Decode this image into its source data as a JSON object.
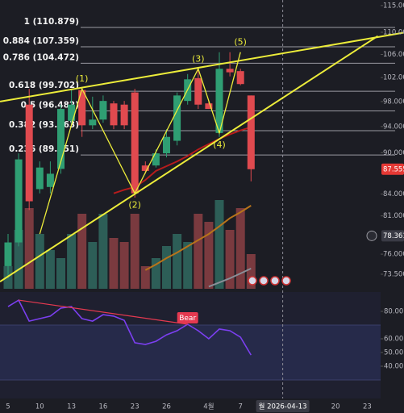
{
  "chart_data": {
    "type": "candlestick",
    "log_scale": true,
    "ylim": [
      71.74,
      116.07
    ],
    "yticks": [
      {
        "value": 115,
        "label": "115.000"
      },
      {
        "value": 110,
        "label": "110.000"
      },
      {
        "value": 106,
        "label": "106.000"
      },
      {
        "value": 102,
        "label": "102.000"
      },
      {
        "value": 98,
        "label": "98.000"
      },
      {
        "value": 94,
        "label": "94.000"
      },
      {
        "value": 90,
        "label": "90.000"
      },
      {
        "value": 84,
        "label": "84.000"
      },
      {
        "value": 81,
        "label": "81.000"
      },
      {
        "value": 76,
        "label": "76.000"
      },
      {
        "value": 73.5,
        "label": "73.500"
      }
    ],
    "categories": [
      "5",
      null,
      null,
      "10",
      null,
      null,
      "13",
      null,
      null,
      "16",
      null,
      null,
      "23",
      null,
      null,
      "26",
      null,
      null,
      null,
      "4월",
      null,
      null,
      "7",
      null,
      null,
      null,
      "월 2026-04-13",
      null,
      null,
      null,
      null,
      "20",
      null,
      null,
      "23"
    ],
    "marker_slot": 26,
    "up_color": "#2f9e73",
    "down_color": "#e04a4f",
    "candles": {
      "open": [
        74.5,
        77.5,
        97.5,
        84.7,
        85.0,
        87.6,
        94.9,
        99.9,
        94.2,
        95.1,
        97.7,
        97.5,
        99.5,
        88.1,
        88.1,
        89.9,
        91.8,
        98.1,
        101.9,
        97.7,
        93.0,
        103.5,
        103.1,
        99.0
      ],
      "high": [
        78.6,
        89.9,
        100.1,
        88.7,
        88.7,
        97.5,
        100.1,
        100.4,
        98.8,
        99.0,
        98.1,
        98.1,
        100.1,
        88.7,
        90.5,
        93.6,
        99.5,
        102.6,
        103.5,
        98.1,
        106.4,
        106.4,
        103.5,
        99.0
      ],
      "low": [
        73.0,
        77.0,
        81.8,
        84.1,
        84.1,
        86.9,
        94.2,
        92.4,
        93.6,
        94.6,
        93.6,
        93.6,
        83.5,
        86.9,
        87.8,
        89.3,
        91.1,
        97.5,
        96.8,
        96.8,
        92.4,
        102.2,
        100.7,
        85.8
      ],
      "close": [
        77.5,
        89.0,
        83.0,
        87.8,
        86.9,
        96.8,
        97.5,
        94.2,
        95.1,
        98.1,
        94.2,
        94.2,
        84.1,
        87.3,
        89.9,
        92.4,
        99.0,
        101.7,
        97.5,
        96.8,
        103.5,
        102.9,
        100.9,
        87.555
      ]
    },
    "volume": {
      "up_color": "#2d5e57",
      "down_color": "#7a3a3f",
      "values": [
        28,
        73,
        100,
        68,
        48,
        38,
        68,
        93,
        58,
        93,
        63,
        58,
        93,
        28,
        38,
        53,
        68,
        58,
        93,
        83,
        110,
        73,
        100,
        43
      ]
    },
    "moving_averages": [
      {
        "color": "#b71c1c",
        "values": [
          null,
          null,
          null,
          null,
          null,
          null,
          null,
          null,
          null,
          null,
          84.1,
          84.6,
          85.0,
          86.0,
          87.3,
          88.0,
          88.7,
          89.5,
          90.5,
          91.3,
          92.1,
          92.8,
          93.4,
          93.9
        ]
      },
      {
        "color": "#b8741a",
        "values": [
          null,
          null,
          null,
          null,
          null,
          null,
          null,
          null,
          null,
          null,
          null,
          null,
          null,
          74.0,
          74.7,
          75.5,
          76.2,
          77.0,
          77.8,
          78.6,
          79.6,
          80.7,
          81.5,
          82.4
        ]
      },
      {
        "color": "#8a8f98",
        "values": [
          null,
          null,
          null,
          null,
          null,
          null,
          null,
          null,
          null,
          null,
          null,
          null,
          null,
          null,
          null,
          null,
          null,
          null,
          null,
          72.0,
          72.5,
          73.0,
          73.6,
          74.2
        ]
      }
    ],
    "fib_levels": [
      {
        "label": "1 (110.879)",
        "value": 110.879
      },
      {
        "label": "0.884 (107.359)",
        "value": 107.359
      },
      {
        "label": "0.786 (104.472)",
        "value": 104.472
      },
      {
        "label": "0.618 (99.702)",
        "value": 99.702
      },
      {
        "label": "0.5 (96.482)",
        "value": 96.482
      },
      {
        "label": "0.382 (93.363)",
        "value": 93.363
      },
      {
        "label": "0.236 (89.651)",
        "value": 89.651
      }
    ],
    "waves": {
      "color": "#ecec3a",
      "start": {
        "slot": 3,
        "value": 78.6
      },
      "points": [
        {
          "label": "(1)",
          "slot": 7,
          "value": 100.1
        },
        {
          "label": "(2)",
          "slot": 12,
          "value": 84.1
        },
        {
          "label": "(3)",
          "slot": 18,
          "value": 103.5
        },
        {
          "label": "(4)",
          "slot": 20,
          "value": 93.0
        },
        {
          "label": "(5)",
          "slot": 22,
          "value": 106.4
        }
      ]
    },
    "trendlines": [
      {
        "color": "#ecec3a",
        "slots": [
          -0.76,
          37.4
        ],
        "values": [
          98.0,
          109.9
        ]
      },
      {
        "color": "#ecec3a",
        "slots": [
          -0.76,
          35
        ],
        "values": [
          72.6,
          109.3
        ]
      }
    ],
    "crosshair_price": 78.361,
    "rsi": {
      "ylim": [
        20,
        90
      ],
      "yticks": [
        {
          "value": 80,
          "label": "80.00"
        },
        {
          "value": 60,
          "label": "60.00"
        },
        {
          "value": 50,
          "label": "50.00"
        },
        {
          "value": 40,
          "label": "40.00"
        }
      ],
      "band": [
        30,
        70
      ],
      "color": "#7b3ff0",
      "values": [
        83.5,
        88.2,
        72.9,
        74.7,
        76.5,
        82.4,
        83.5,
        74.7,
        72.9,
        77.6,
        76.5,
        73.5,
        57.1,
        55.9,
        58.2,
        62.9,
        65.9,
        70.6,
        65.9,
        60.0,
        67.1,
        65.9,
        61.2,
        48.2
      ],
      "divergence": {
        "label": "Bear",
        "color": "#e53950",
        "slots": [
          1,
          17
        ],
        "values": [
          88.2,
          70.6
        ]
      }
    }
  }
}
